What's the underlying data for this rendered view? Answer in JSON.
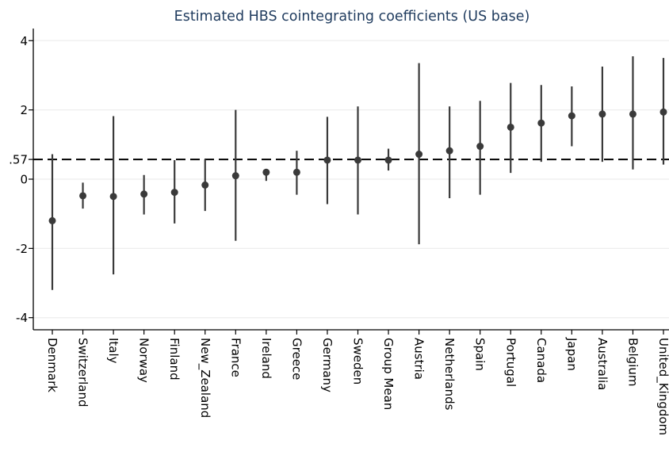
{
  "chart_data": {
    "type": "scatter",
    "title": "Estimated HBS cointegrating coefficients (US base)",
    "xlabel": "",
    "ylabel": "",
    "ylim": [
      -4.35,
      4.35
    ],
    "yticks": [
      {
        "value": 4,
        "label": "4"
      },
      {
        "value": 2,
        "label": "2"
      },
      {
        "value": 0.57,
        "label": ".57"
      },
      {
        "value": 0,
        "label": "0"
      },
      {
        "value": -2,
        "label": "-2"
      },
      {
        "value": -4,
        "label": "-4"
      }
    ],
    "gridlines": [
      4,
      2,
      0,
      -2,
      -4
    ],
    "reference_line": 0.57,
    "categories": [
      "Denmark",
      "Switzerland",
      "Italy",
      "Norway",
      "Finland",
      "New_Zealand",
      "France",
      "Ireland",
      "Greece",
      "Germany",
      "Sweden",
      "Group Mean",
      "Austria",
      "Netherlands",
      "Spain",
      "Portugal",
      "Canada",
      "Japan",
      "Australia",
      "Belgium",
      "United_Kingdom"
    ],
    "values": [
      -1.2,
      -0.48,
      -0.5,
      -0.43,
      -0.38,
      -0.17,
      0.1,
      0.2,
      0.2,
      0.55,
      0.55,
      0.55,
      0.72,
      0.82,
      0.95,
      1.5,
      1.62,
      1.83,
      1.88,
      1.88,
      1.94
    ],
    "lower": [
      -3.2,
      -0.85,
      -2.75,
      -1.02,
      -1.28,
      -0.92,
      -1.78,
      -0.05,
      -0.45,
      -0.72,
      -1.02,
      0.25,
      -1.88,
      -0.55,
      -0.45,
      0.18,
      0.5,
      0.95,
      0.5,
      0.28,
      0.42
    ],
    "upper": [
      0.72,
      -0.1,
      1.82,
      0.12,
      0.55,
      0.57,
      2.0,
      0.28,
      0.82,
      1.8,
      2.1,
      0.88,
      3.35,
      2.1,
      2.26,
      2.78,
      2.72,
      2.68,
      3.25,
      3.55,
      3.5
    ],
    "colors": {
      "point": "#3a3a3a",
      "bar": "#3a3a3a",
      "title": "#1f3b5e",
      "grid": "#eeeeee",
      "axis": "#000000"
    }
  }
}
